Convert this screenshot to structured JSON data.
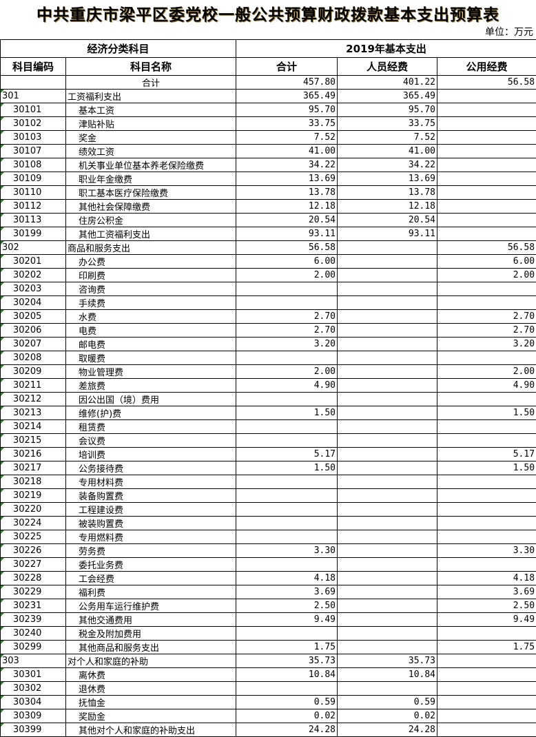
{
  "title": "中共重庆市梁平区委党校一般公共预算财政拨款基本支出预算表",
  "unit": "单位：万元",
  "header": {
    "group_left": "经济分类科目",
    "group_right": "2019年基本支出",
    "code": "科目编码",
    "name": "科目名称",
    "total": "合计",
    "personnel": "人员经费",
    "public": "公用经费"
  },
  "rows": [
    [
      "",
      "合计",
      "457.80",
      "401.22",
      "56.58"
    ],
    [
      "301",
      "工资福利支出",
      "365.49",
      "365.49",
      ""
    ],
    [
      "30101",
      "基本工资",
      "95.70",
      "95.70",
      ""
    ],
    [
      "30102",
      "津贴补贴",
      "33.75",
      "33.75",
      ""
    ],
    [
      "30103",
      "奖金",
      "7.52",
      "7.52",
      ""
    ],
    [
      "30107",
      "绩效工资",
      "41.00",
      "41.00",
      ""
    ],
    [
      "30108",
      "机关事业单位基本养老保险缴费",
      "34.22",
      "34.22",
      ""
    ],
    [
      "30109",
      "职业年金缴费",
      "13.69",
      "13.69",
      ""
    ],
    [
      "30110",
      "职工基本医疗保险缴费",
      "13.78",
      "13.78",
      ""
    ],
    [
      "30112",
      "其他社会保障缴费",
      "12.18",
      "12.18",
      ""
    ],
    [
      "30113",
      "住房公积金",
      "20.54",
      "20.54",
      ""
    ],
    [
      "30199",
      "其他工资福利支出",
      "93.11",
      "93.11",
      ""
    ],
    [
      "302",
      "商品和服务支出",
      "56.58",
      "",
      "56.58"
    ],
    [
      "30201",
      "办公费",
      "6.00",
      "",
      "6.00"
    ],
    [
      "30202",
      "印刷费",
      "2.00",
      "",
      "2.00"
    ],
    [
      "30203",
      "咨询费",
      "",
      "",
      ""
    ],
    [
      "30204",
      "手续费",
      "",
      "",
      ""
    ],
    [
      "30205",
      "水费",
      "2.70",
      "",
      "2.70"
    ],
    [
      "30206",
      "电费",
      "2.70",
      "",
      "2.70"
    ],
    [
      "30207",
      "邮电费",
      "3.20",
      "",
      "3.20"
    ],
    [
      "30208",
      "取暖费",
      "",
      "",
      ""
    ],
    [
      "30209",
      "物业管理费",
      "2.00",
      "",
      "2.00"
    ],
    [
      "30211",
      "差旅费",
      "4.90",
      "",
      "4.90"
    ],
    [
      "30212",
      "因公出国（境）费用",
      "",
      "",
      ""
    ],
    [
      "30213",
      "维修(护)费",
      "1.50",
      "",
      "1.50"
    ],
    [
      "30214",
      "租赁费",
      "",
      "",
      ""
    ],
    [
      "30215",
      "会议费",
      "",
      "",
      ""
    ],
    [
      "30216",
      "培训费",
      "5.17",
      "",
      "5.17"
    ],
    [
      "30217",
      "公务接待费",
      "1.50",
      "",
      "1.50"
    ],
    [
      "30218",
      "专用材料费",
      "",
      "",
      ""
    ],
    [
      "30219",
      "装备购置费",
      "",
      "",
      ""
    ],
    [
      "30220",
      "工程建设费",
      "",
      "",
      ""
    ],
    [
      "30224",
      "被装购置费",
      "",
      "",
      ""
    ],
    [
      "30225",
      "专用燃料费",
      "",
      "",
      ""
    ],
    [
      "30226",
      "劳务费",
      "3.30",
      "",
      "3.30"
    ],
    [
      "30227",
      "委托业务费",
      "",
      "",
      ""
    ],
    [
      "30228",
      "工会经费",
      "4.18",
      "",
      "4.18"
    ],
    [
      "30229",
      "福利费",
      "3.69",
      "",
      "3.69"
    ],
    [
      "30231",
      "公务用车运行维护费",
      "2.50",
      "",
      "2.50"
    ],
    [
      "30239",
      "其他交通费用",
      "9.49",
      "",
      "9.49"
    ],
    [
      "30240",
      "税金及附加费用",
      "",
      "",
      ""
    ],
    [
      "30299",
      "其他商品和服务支出",
      "1.75",
      "",
      "1.75"
    ],
    [
      "303",
      "对个人和家庭的补助",
      "35.73",
      "35.73",
      ""
    ],
    [
      "30301",
      "离休费",
      "10.84",
      "10.84",
      ""
    ],
    [
      "30302",
      "退休费",
      "",
      "",
      ""
    ],
    [
      "30304",
      "抚恤金",
      "0.59",
      "0.59",
      ""
    ],
    [
      "30309",
      "奖励金",
      "0.02",
      "0.02",
      ""
    ],
    [
      "30399",
      "其他对个人和家庭的补助支出",
      "24.28",
      "24.28",
      ""
    ]
  ]
}
